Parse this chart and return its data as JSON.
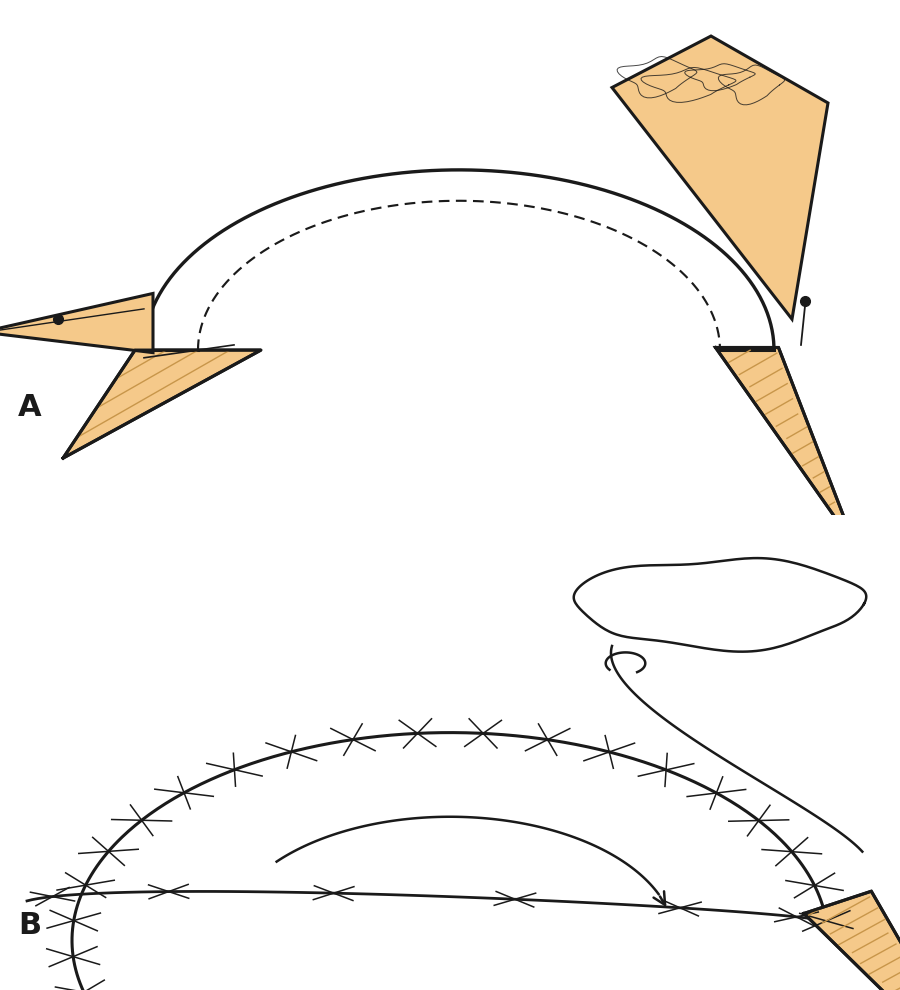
{
  "bg_color": "#ffffff",
  "skin_color": "#f5c98a",
  "hatch_color": "#c8964a",
  "outline_color": "#1a1a1a",
  "label_A": "A",
  "label_B": "B",
  "label_fontsize": 22,
  "fig_width": 9.0,
  "fig_height": 9.9
}
